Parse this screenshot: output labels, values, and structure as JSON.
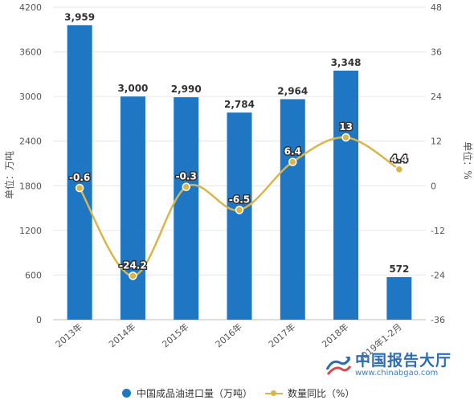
{
  "chart_data": {
    "type": "bar+line",
    "categories": [
      "2013年",
      "2014年",
      "2015年",
      "2016年",
      "2017年",
      "2018年",
      "2019年1-2月"
    ],
    "series": [
      {
        "name": "中国成品油进口量（万吨）",
        "type": "bar",
        "axis": "left",
        "values": [
          3959,
          3000,
          2990,
          2784,
          2964,
          3348,
          572
        ],
        "labels": [
          "3,959",
          "3,000",
          "2,990",
          "2,784",
          "2,964",
          "3,348",
          "572"
        ],
        "color": "#1f77c4"
      },
      {
        "name": "数量同比（%）",
        "type": "line",
        "axis": "right",
        "values": [
          -0.6,
          -24.2,
          -0.3,
          -6.5,
          6.4,
          13,
          4.4
        ],
        "labels": [
          "-0.6",
          "-24.2",
          "-0.3",
          "-6.5",
          "6.4",
          "13",
          "4.4"
        ],
        "color": "#d9b54a"
      }
    ],
    "y_left": {
      "label": "单位：万吨",
      "ylim": [
        0,
        4200
      ],
      "ticks": [
        "0",
        "600",
        "1200",
        "1800",
        "2400",
        "3000",
        "3600",
        "4200"
      ],
      "tick_values": [
        0,
        600,
        1200,
        1800,
        2400,
        3000,
        3600,
        4200
      ]
    },
    "y_right": {
      "label": "单位：%",
      "ylim": [
        -36,
        48
      ],
      "ticks": [
        "-36",
        "-24",
        "-12",
        "0",
        "12",
        "24",
        "36",
        "48"
      ],
      "tick_values": [
        -36,
        -24,
        -12,
        0,
        12,
        24,
        36,
        48
      ]
    },
    "grid": true,
    "legend": "bottom"
  },
  "legend": {
    "bar": "中国成品油进口量（万吨）",
    "line": "数量同比（%）"
  },
  "watermark": {
    "name": "中国报告大厅",
    "url": "www.chinabgao.com"
  },
  "colors": {
    "bar": "#1f77c4",
    "line": "#d9b54a"
  }
}
